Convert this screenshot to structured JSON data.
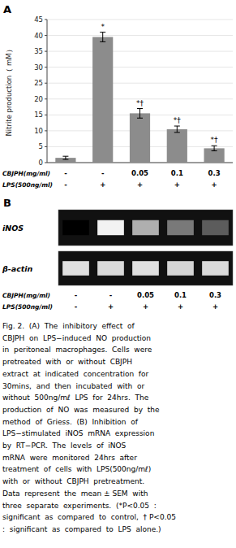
{
  "chart_data": {
    "type": "bar",
    "ylabel": "Nitrite production（ mM）",
    "categories": [
      null,
      null,
      null,
      null,
      null
    ],
    "values": [
      1.5,
      39.5,
      15.5,
      10.5,
      4.5
    ],
    "errors": [
      0.5,
      1.5,
      1.5,
      1.0,
      0.8
    ],
    "color": "#8c8c8c",
    "ylim": [
      0,
      45
    ],
    "yticks": [
      0,
      5,
      10,
      15,
      20,
      25,
      30,
      35,
      40,
      45
    ],
    "annotations": [
      null,
      "*",
      "*†",
      "*†",
      "*†"
    ],
    "panel_labels": [
      "A",
      "B"
    ],
    "row_labels": [
      {
        "label": "CBJPH(mg/ml)",
        "values": [
          "-",
          "-",
          "0.05",
          "0.1",
          "0.3"
        ]
      },
      {
        "label": "LPS(500ng/ml)",
        "values": [
          "-",
          "+",
          "+",
          "+",
          "+"
        ]
      }
    ],
    "gel": {
      "color": "#111111",
      "bands": [
        {
          "label": "iNOS",
          "intensities": [
            0.0,
            1.0,
            0.72,
            0.5,
            0.38
          ]
        },
        {
          "label": "β-actin",
          "intensities": [
            0.92,
            0.9,
            0.92,
            0.88,
            0.9
          ]
        }
      ],
      "row_labels": [
        {
          "label": "CBJPH(mg/ml)",
          "values": [
            "-",
            "-",
            "0.05",
            "0.1",
            "0.3"
          ]
        },
        {
          "label": "LPS(500ng/ml)",
          "values": [
            "-",
            "+",
            "+",
            "+",
            "+"
          ]
        }
      ]
    },
    "caption": [
      "Fig. 2.  (A)  The  inhibitory  effect  of",
      "CBJPH  on  LPS−induced  NO  production",
      "in  peritoneal  macrophages.  Cells  were",
      "pretreated  with  or  without  CBJPH",
      "extract  at  indicated  concentration  for",
      "30mins,  and  then  incubated  with  or",
      "without  500ng/mℓ  LPS  for  24hrs.  The",
      "production  of  NO  was  measured  by  the",
      "method  of  Griess.  (B)  Inhibition  of",
      "LPS−stimulated  iNOS  mRNA  expression",
      "by  RT−PCR.  The  levels  of  iNOS",
      "mRNA  were  monitored  24hrs  after",
      "treatment  of  cells  with  LPS(500ng/mℓ)",
      "with  or  without  CBJPH  pretreatment.",
      "Data  represent  the  mean ± SEM  with",
      "three  separate  experiments.  (*P<0.05  :",
      "significant  as  compared  to  control,  † P<0.05",
      ":  significant  as  compared  to  LPS  alone.)"
    ]
  }
}
